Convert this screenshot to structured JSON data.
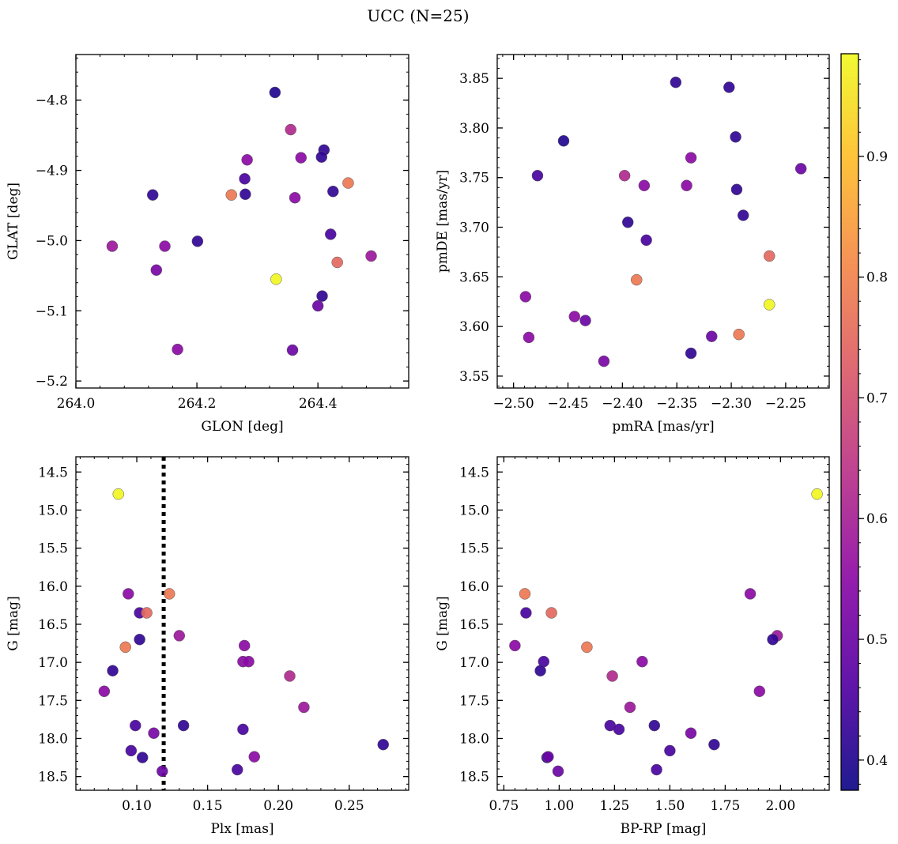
{
  "figure_title": "UCC (N=25)",
  "colormap": [
    "#0d0887",
    "#5302a3",
    "#8b0aa5",
    "#b83289",
    "#db5c68",
    "#f48849",
    "#febd2a",
    "#f0f921"
  ],
  "colorbar": {
    "range": [
      0.375,
      0.985
    ],
    "ticks": [
      "0.4",
      "0.5",
      "0.6",
      "0.7",
      "0.8",
      "0.9"
    ]
  },
  "chart_data": [
    {
      "name": "glon-glat",
      "type": "scatter",
      "xlabel": "GLON [deg]",
      "ylabel": "GLAT [deg]",
      "xlim": [
        264.0,
        264.55
      ],
      "ylim": [
        -5.21,
        -4.735
      ],
      "xticks": [
        "264.0",
        "264.2",
        "264.4"
      ],
      "yticks": [
        "−4.8",
        "−4.9",
        "−5.0",
        "−5.1",
        "−5.2"
      ],
      "invert_y": false,
      "x": [
        264.329,
        264.355,
        264.372,
        264.41,
        264.406,
        264.283,
        264.279,
        264.45,
        264.127,
        264.257,
        264.28,
        264.362,
        264.425,
        264.421,
        264.201,
        264.06,
        264.147,
        264.488,
        264.432,
        264.133,
        264.331,
        264.407,
        264.4,
        264.168,
        264.358
      ],
      "y": [
        -4.789,
        -4.842,
        -4.882,
        -4.871,
        -4.881,
        -4.885,
        -4.912,
        -4.918,
        -4.935,
        -4.935,
        -4.934,
        -4.939,
        -4.93,
        -4.991,
        -5.001,
        -5.008,
        -5.008,
        -5.022,
        -5.031,
        -5.042,
        -5.055,
        -5.079,
        -5.093,
        -5.155,
        -5.156
      ],
      "c": [
        0.4,
        0.62,
        0.55,
        0.42,
        0.42,
        0.55,
        0.45,
        0.78,
        0.42,
        0.78,
        0.42,
        0.55,
        0.42,
        0.45,
        0.42,
        0.58,
        0.55,
        0.58,
        0.75,
        0.52,
        0.98,
        0.42,
        0.5,
        0.55,
        0.5
      ]
    },
    {
      "name": "pmra-pmde",
      "type": "scatter",
      "xlabel": "pmRA [mas/yr]",
      "ylabel": "pmDE [mas/yr]",
      "xlim": [
        -2.515,
        -2.21
      ],
      "ylim": [
        3.538,
        3.874
      ],
      "xticks": [
        "−2.50",
        "−2.45",
        "−2.40",
        "−2.35",
        "−2.30",
        "−2.25"
      ],
      "yticks": [
        "3.55",
        "3.60",
        "3.65",
        "3.70",
        "3.75",
        "3.80",
        "3.85"
      ],
      "invert_y": false,
      "x": [
        -2.351,
        -2.302,
        -2.454,
        -2.296,
        -2.236,
        -2.478,
        -2.398,
        -2.38,
        -2.337,
        -2.341,
        -2.295,
        -2.289,
        -2.395,
        -2.378,
        -2.265,
        -2.387,
        -2.489,
        -2.265,
        -2.444,
        -2.434,
        -2.486,
        -2.293,
        -2.318,
        -2.337,
        -2.417
      ],
      "y": [
        3.846,
        3.841,
        3.787,
        3.791,
        3.759,
        3.752,
        3.752,
        3.742,
        3.77,
        3.742,
        3.738,
        3.712,
        3.705,
        3.687,
        3.671,
        3.647,
        3.63,
        3.622,
        3.61,
        3.606,
        3.589,
        3.592,
        3.59,
        3.573,
        3.565
      ],
      "c": [
        0.42,
        0.42,
        0.4,
        0.42,
        0.5,
        0.45,
        0.62,
        0.55,
        0.55,
        0.55,
        0.42,
        0.42,
        0.42,
        0.45,
        0.75,
        0.78,
        0.55,
        0.98,
        0.55,
        0.5,
        0.55,
        0.78,
        0.5,
        0.42,
        0.52
      ]
    },
    {
      "name": "plx-g",
      "type": "scatter",
      "xlabel": "Plx [mas]",
      "ylabel": "G [mag]",
      "xlim": [
        0.057,
        0.292
      ],
      "ylim": [
        18.68,
        14.3
      ],
      "xticks": [
        "0.10",
        "0.15",
        "0.20",
        "0.25"
      ],
      "yticks": [
        "14.5",
        "15.0",
        "15.5",
        "16.0",
        "16.5",
        "17.0",
        "17.5",
        "18.0",
        "18.5"
      ],
      "invert_y": true,
      "vline": 0.119,
      "x": [
        0.087,
        0.094,
        0.123,
        0.102,
        0.107,
        0.13,
        0.102,
        0.092,
        0.176,
        0.175,
        0.179,
        0.083,
        0.208,
        0.077,
        0.218,
        0.099,
        0.133,
        0.112,
        0.175,
        0.274,
        0.096,
        0.104,
        0.183,
        0.171,
        0.118
      ],
      "y": [
        14.79,
        16.1,
        16.1,
        16.35,
        16.35,
        16.65,
        16.7,
        16.8,
        16.78,
        16.99,
        16.99,
        17.11,
        17.18,
        17.38,
        17.59,
        17.83,
        17.83,
        17.93,
        17.88,
        18.08,
        18.16,
        18.25,
        18.24,
        18.41,
        18.43
      ],
      "c": [
        0.98,
        0.55,
        0.78,
        0.45,
        0.75,
        0.58,
        0.42,
        0.78,
        0.55,
        0.55,
        0.55,
        0.42,
        0.62,
        0.55,
        0.58,
        0.45,
        0.42,
        0.52,
        0.45,
        0.42,
        0.45,
        0.42,
        0.55,
        0.45,
        0.5
      ]
    },
    {
      "name": "bprp-g",
      "type": "scatter",
      "xlabel": "BP-RP [mag]",
      "ylabel": "G [mag]",
      "xlim": [
        0.72,
        2.22
      ],
      "ylim": [
        18.68,
        14.3
      ],
      "xticks": [
        "0.75",
        "1.00",
        "1.25",
        "1.50",
        "1.75",
        "2.00"
      ],
      "yticks": [
        "14.5",
        "15.0",
        "15.5",
        "16.0",
        "16.5",
        "17.0",
        "17.5",
        "18.0",
        "18.5"
      ],
      "invert_y": true,
      "x": [
        2.165,
        0.845,
        1.863,
        0.85,
        0.965,
        1.985,
        1.965,
        0.8,
        1.125,
        0.93,
        1.375,
        0.915,
        1.24,
        1.905,
        1.32,
        1.23,
        1.43,
        1.595,
        1.27,
        1.7,
        1.5,
        0.945,
        0.95,
        1.44,
        0.995
      ],
      "y": [
        14.79,
        16.1,
        16.1,
        16.35,
        16.35,
        16.65,
        16.7,
        16.78,
        16.8,
        16.99,
        16.99,
        17.11,
        17.18,
        17.38,
        17.59,
        17.83,
        17.83,
        17.93,
        17.88,
        18.08,
        18.16,
        18.25,
        18.24,
        18.41,
        18.43
      ],
      "c": [
        0.98,
        0.78,
        0.55,
        0.45,
        0.75,
        0.58,
        0.42,
        0.55,
        0.78,
        0.45,
        0.55,
        0.42,
        0.62,
        0.55,
        0.58,
        0.45,
        0.42,
        0.52,
        0.45,
        0.42,
        0.45,
        0.42,
        0.5,
        0.45,
        0.5
      ]
    }
  ]
}
